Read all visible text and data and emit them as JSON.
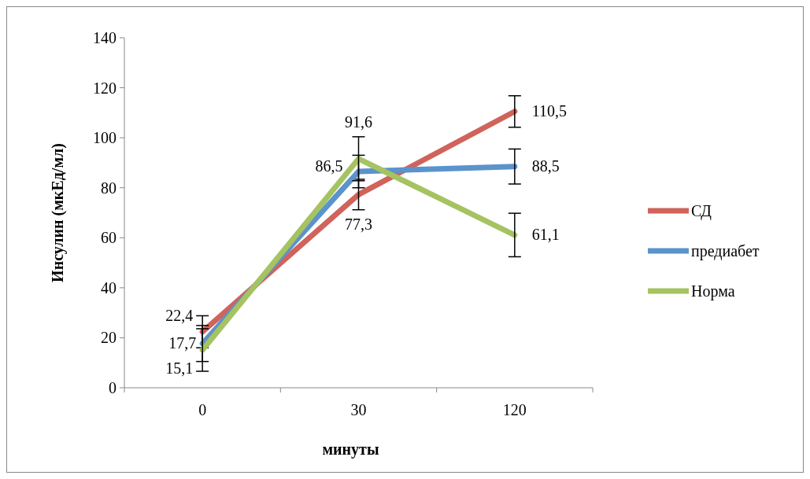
{
  "chart_data": {
    "type": "line",
    "xlabel": "минуты",
    "ylabel": "Инсулин (мкЕд/мл)",
    "categories": [
      "0",
      "30",
      "120"
    ],
    "ylim": [
      0,
      140
    ],
    "yticks": [
      0,
      20,
      40,
      60,
      80,
      100,
      120,
      140
    ],
    "legend": "right",
    "grid": false,
    "marker": "none",
    "series": [
      {
        "name": "СД",
        "color": "#d0635b",
        "values": [
          22.4,
          77.3,
          110.5
        ],
        "errors": [
          6.4,
          6.1,
          6.3
        ],
        "value_labels": [
          "22,4",
          "77,3",
          "110,5"
        ]
      },
      {
        "name": "предиабет",
        "color": "#5b93cc",
        "values": [
          17.7,
          86.5,
          88.5
        ],
        "errors": [
          7.2,
          6.5,
          7
        ],
        "value_labels": [
          "17,7",
          "86,5",
          "88,5"
        ]
      },
      {
        "name": "Норма",
        "color": "#a5c360",
        "values": [
          15.1,
          91.6,
          61.1
        ],
        "errors": [
          8.5,
          8.8,
          8.7
        ],
        "value_labels": [
          "15,1",
          "91,6",
          "61,1"
        ]
      }
    ]
  }
}
